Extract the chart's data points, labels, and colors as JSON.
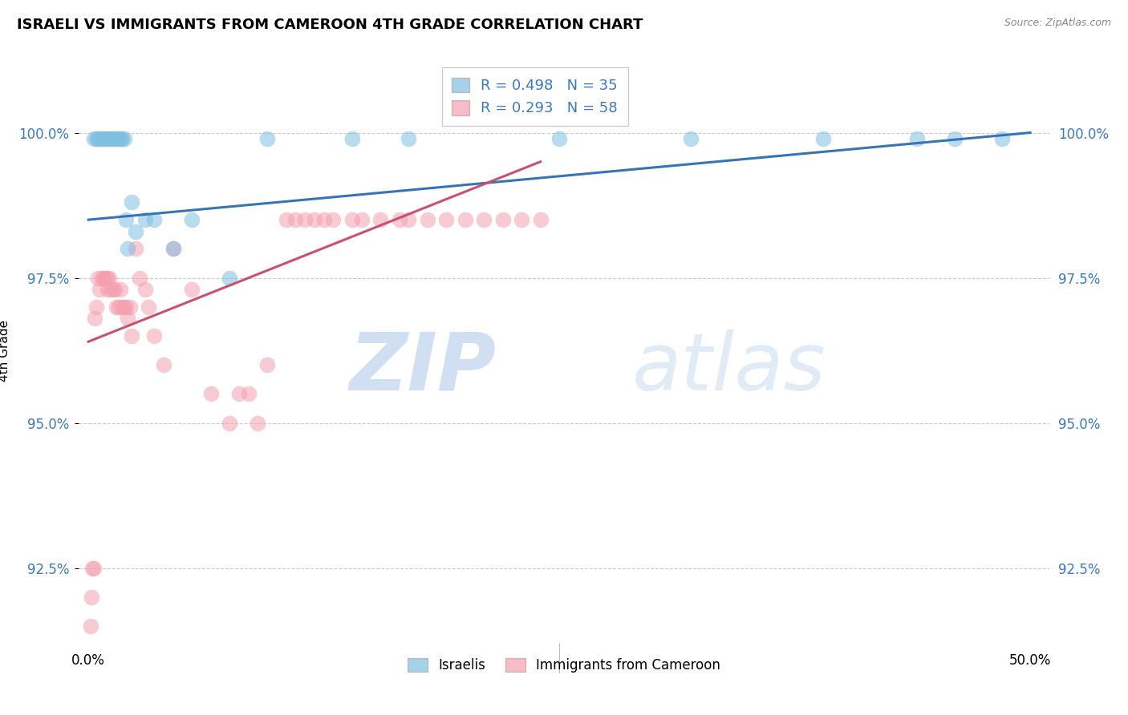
{
  "title": "ISRAELI VS IMMIGRANTS FROM CAMEROON 4TH GRADE CORRELATION CHART",
  "source": "Source: ZipAtlas.com",
  "ylabel": "4th Grade",
  "xlim": [
    -0.5,
    51.0
  ],
  "ylim": [
    91.2,
    101.3
  ],
  "yticks": [
    92.5,
    95.0,
    97.5,
    100.0
  ],
  "ytick_labels": [
    "92.5%",
    "95.0%",
    "97.5%",
    "100.0%"
  ],
  "xtick_positions": [
    0,
    10,
    20,
    30,
    40,
    50
  ],
  "xtick_labels": [
    "0.0%",
    "",
    "",
    "",
    "",
    "50.0%"
  ],
  "israeli_R": 0.498,
  "israeli_N": 35,
  "cameroon_R": 0.293,
  "cameroon_N": 58,
  "israeli_color": "#7fbfdf",
  "cameroon_color": "#f4a0b0",
  "israeli_line_color": "#3575b5",
  "cameroon_line_color": "#c85070",
  "legend_label_israeli": "Israelis",
  "legend_label_cameroon": "Immigrants from Cameroon",
  "watermark_zip": "ZIP",
  "watermark_atlas": "atlas",
  "israeli_x": [
    0.3,
    0.4,
    0.5,
    0.6,
    0.7,
    0.8,
    0.9,
    1.0,
    1.1,
    1.2,
    1.3,
    1.4,
    1.5,
    1.6,
    1.7,
    1.8,
    1.9,
    2.0,
    2.1,
    2.3,
    2.5,
    3.0,
    3.5,
    4.5,
    5.5,
    7.5,
    9.5,
    14.0,
    17.0,
    25.0,
    32.0,
    39.0,
    44.0,
    46.0,
    48.5
  ],
  "israeli_y": [
    99.9,
    99.9,
    99.9,
    99.9,
    99.9,
    99.9,
    99.9,
    99.9,
    99.9,
    99.9,
    99.9,
    99.9,
    99.9,
    99.9,
    99.9,
    99.9,
    99.9,
    98.5,
    98.0,
    98.8,
    98.3,
    98.5,
    98.5,
    98.0,
    98.5,
    97.5,
    99.9,
    99.9,
    99.9,
    99.9,
    99.9,
    99.9,
    99.9,
    99.9,
    99.9
  ],
  "cameroon_x": [
    0.1,
    0.15,
    0.2,
    0.3,
    0.35,
    0.4,
    0.5,
    0.6,
    0.7,
    0.8,
    0.9,
    1.0,
    1.0,
    1.1,
    1.2,
    1.3,
    1.4,
    1.5,
    1.6,
    1.7,
    1.8,
    1.9,
    2.0,
    2.1,
    2.2,
    2.3,
    2.5,
    2.7,
    3.0,
    3.2,
    3.5,
    4.0,
    4.5,
    5.5,
    6.5,
    7.5,
    8.0,
    8.5,
    9.0,
    9.5,
    10.5,
    11.0,
    11.5,
    12.0,
    12.5,
    13.0,
    14.0,
    14.5,
    15.5,
    16.5,
    17.0,
    18.0,
    19.0,
    20.0,
    21.0,
    22.0,
    23.0,
    24.0
  ],
  "cameroon_y": [
    91.5,
    92.0,
    92.5,
    92.5,
    96.8,
    97.0,
    97.5,
    97.3,
    97.5,
    97.5,
    97.5,
    97.3,
    97.5,
    97.5,
    97.3,
    97.3,
    97.3,
    97.0,
    97.0,
    97.3,
    97.0,
    97.0,
    97.0,
    96.8,
    97.0,
    96.5,
    98.0,
    97.5,
    97.3,
    97.0,
    96.5,
    96.0,
    98.0,
    97.3,
    95.5,
    95.0,
    95.5,
    95.5,
    95.0,
    96.0,
    98.5,
    98.5,
    98.5,
    98.5,
    98.5,
    98.5,
    98.5,
    98.5,
    98.5,
    98.5,
    98.5,
    98.5,
    98.5,
    98.5,
    98.5,
    98.5,
    98.5,
    98.5
  ],
  "israeli_trendline_x": [
    0.0,
    50.0
  ],
  "israeli_trendline_y": [
    98.5,
    100.0
  ],
  "cameroon_trendline_x": [
    0.0,
    24.0
  ],
  "cameroon_trendline_y": [
    96.4,
    99.5
  ]
}
